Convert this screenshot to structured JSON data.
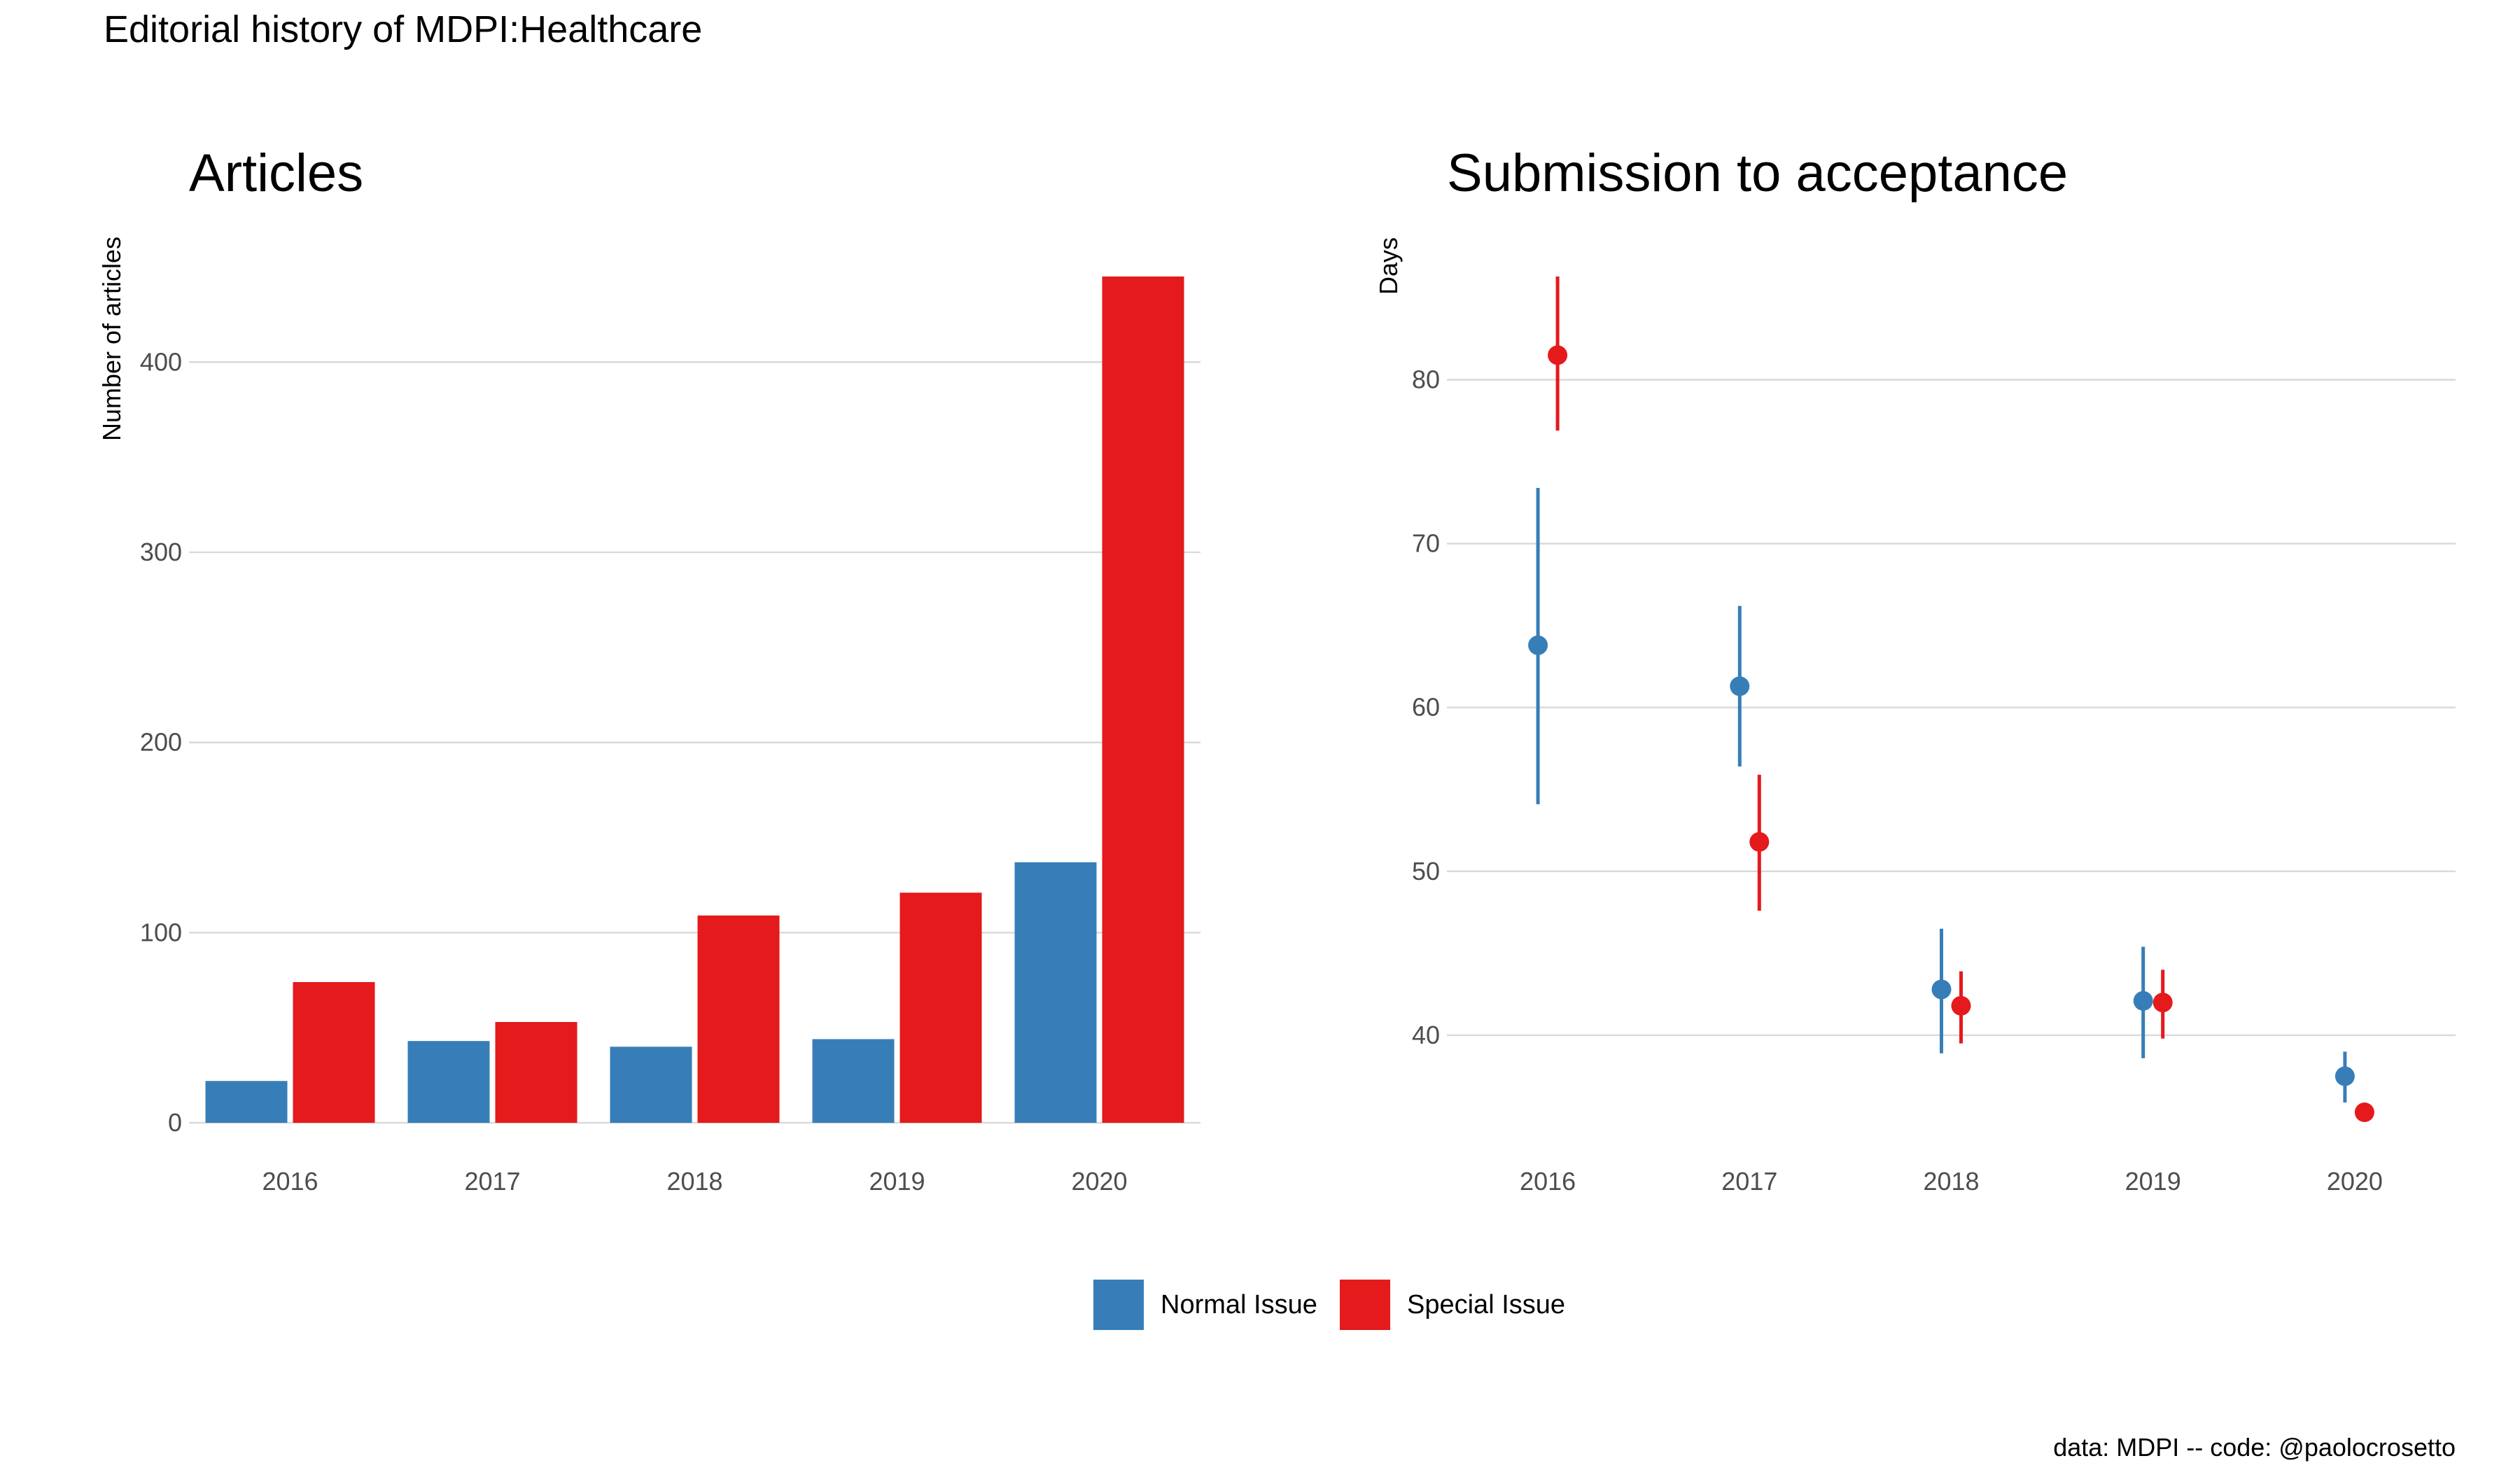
{
  "title": "Editorial history of MDPI:Healthcare",
  "caption": "data: MDPI -- code: @paolocrosetto",
  "colors": {
    "normal": "#377EB8",
    "special": "#E41A1C",
    "grid": "#d9d9d9"
  },
  "legend": [
    {
      "key": "normal",
      "label": "Normal Issue"
    },
    {
      "key": "special",
      "label": "Special Issue"
    }
  ],
  "chart_data": [
    {
      "type": "bar",
      "title": "Articles",
      "ylabel": "Number of articles",
      "xlabel": "",
      "categories": [
        "2016",
        "2017",
        "2018",
        "2019",
        "2020"
      ],
      "series": [
        {
          "name": "Normal Issue",
          "key": "normal",
          "values": [
            22,
            43,
            40,
            44,
            137
          ]
        },
        {
          "name": "Special Issue",
          "key": "special",
          "values": [
            74,
            53,
            109,
            121,
            445
          ]
        }
      ],
      "yticks": [
        0,
        100,
        200,
        300,
        400
      ],
      "ylim": [
        0,
        445
      ]
    },
    {
      "type": "scatter",
      "title": "Submission to acceptance",
      "ylabel": "Days",
      "xlabel": "",
      "categories": [
        "2016",
        "2017",
        "2018",
        "2019",
        "2020"
      ],
      "series": [
        {
          "name": "Normal Issue",
          "key": "normal",
          "points": [
            {
              "x": "2016",
              "y": 63.8,
              "low": 54.1,
              "high": 73.4
            },
            {
              "x": "2017",
              "y": 61.3,
              "low": 56.4,
              "high": 66.2
            },
            {
              "x": "2018",
              "y": 42.8,
              "low": 38.9,
              "high": 46.5
            },
            {
              "x": "2019",
              "y": 42.1,
              "low": 38.6,
              "high": 45.4
            },
            {
              "x": "2020",
              "y": 37.5,
              "low": 35.9,
              "high": 39.0
            }
          ]
        },
        {
          "name": "Special Issue",
          "key": "special",
          "points": [
            {
              "x": "2016",
              "y": 81.5,
              "low": 76.9,
              "high": 86.3
            },
            {
              "x": "2017",
              "y": 51.8,
              "low": 47.6,
              "high": 55.9
            },
            {
              "x": "2018",
              "y": 41.8,
              "low": 39.5,
              "high": 43.9
            },
            {
              "x": "2019",
              "y": 42.0,
              "low": 39.8,
              "high": 44.0
            },
            {
              "x": "2020",
              "y": 35.3,
              "low": 35.3,
              "high": 35.3
            }
          ]
        }
      ],
      "yticks": [
        40,
        50,
        60,
        70,
        80
      ],
      "ylim": [
        35.3,
        86.3
      ]
    }
  ]
}
